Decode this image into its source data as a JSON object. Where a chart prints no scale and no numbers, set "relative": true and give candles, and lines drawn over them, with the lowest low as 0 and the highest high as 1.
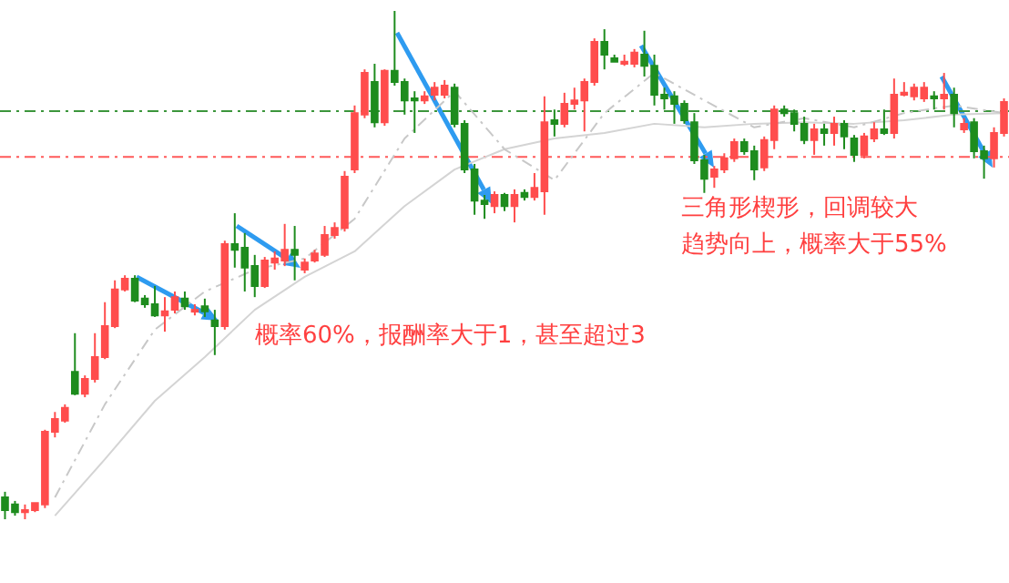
{
  "chart_data": {
    "type": "candlestick",
    "relative": true,
    "categories": [
      null,
      null,
      null,
      null,
      null,
      null,
      null,
      null,
      null,
      null,
      null,
      null,
      null,
      null,
      null,
      null,
      null,
      null,
      null,
      null,
      null,
      null,
      null,
      null,
      null,
      null,
      null,
      null,
      null,
      null,
      null,
      null,
      null,
      null,
      null,
      null,
      null,
      null,
      null,
      null,
      null,
      null,
      null,
      null,
      null,
      null,
      null,
      null,
      null,
      null,
      null,
      null,
      null,
      null,
      null,
      null,
      null,
      null,
      null,
      null,
      null,
      null,
      null,
      null,
      null,
      null,
      null,
      null,
      null,
      null,
      null,
      null,
      null,
      null,
      null,
      null,
      null,
      null,
      null,
      null,
      null,
      null,
      null,
      null,
      null,
      null,
      null,
      null,
      null,
      null,
      null,
      null,
      null,
      null,
      null,
      null,
      null,
      null,
      null,
      null,
      null
    ],
    "ohlc": [
      [
        0.043,
        0.054,
        0,
        0.018
      ],
      [
        0.029,
        0.036,
        0.007,
        0.014
      ],
      [
        0.014,
        0.029,
        0,
        0.018
      ],
      [
        0.018,
        0.032,
        0.014,
        0.032
      ],
      [
        0.029,
        0.176,
        0.022,
        0.172
      ],
      [
        0.172,
        0.211,
        0.161,
        0.197
      ],
      [
        0.194,
        0.226,
        0.19,
        0.219
      ],
      [
        0.29,
        0.366,
        0.244,
        0.247
      ],
      [
        0.247,
        0.283,
        0.24,
        0.276
      ],
      [
        0.276,
        0.366,
        0.269,
        0.319
      ],
      [
        0.319,
        0.427,
        0.315,
        0.38
      ],
      [
        0.38,
        0.47,
        0.376,
        0.452
      ],
      [
        0.452,
        0.48,
        0.448,
        0.473
      ],
      [
        0.473,
        0.48,
        0.427,
        0.43
      ],
      [
        0.434,
        0.441,
        0.416,
        0.423
      ],
      [
        0.423,
        0.459,
        0.398,
        0.401
      ],
      [
        0.401,
        0.437,
        0.369,
        0.409
      ],
      [
        0.412,
        0.448,
        0.405,
        0.437
      ],
      [
        0.434,
        0.448,
        0.412,
        0.419
      ],
      [
        0.409,
        0.423,
        0.401,
        0.412
      ],
      [
        0.419,
        0.434,
        0.398,
        0.409
      ],
      [
        0.391,
        0.412,
        0.323,
        0.38
      ],
      [
        0.38,
        0.548,
        0.373,
        0.541
      ],
      [
        0.541,
        0.602,
        0.495,
        0.53
      ],
      [
        0.534,
        0.563,
        0.448,
        0.495
      ],
      [
        0.498,
        0.52,
        0.437,
        0.459
      ],
      [
        0.459,
        0.516,
        0.455,
        0.509
      ],
      [
        0.505,
        0.527,
        0.491,
        0.513
      ],
      [
        0.509,
        0.581,
        0.498,
        0.53
      ],
      [
        0.53,
        0.577,
        0.47,
        0.52
      ],
      [
        0.491,
        0.513,
        0.484,
        0.505
      ],
      [
        0.509,
        0.53,
        0.505,
        0.523
      ],
      [
        0.52,
        0.577,
        0.516,
        0.559
      ],
      [
        0.559,
        0.584,
        0.552,
        0.573
      ],
      [
        0.573,
        0.685,
        0.566,
        0.674
      ],
      [
        0.688,
        0.814,
        0.681,
        0.799
      ],
      [
        0.796,
        0.885,
        0.789,
        0.878
      ],
      [
        0.86,
        0.896,
        0.771,
        0.781
      ],
      [
        0.781,
        0.885,
        0.774,
        0.882
      ],
      [
        0.882,
        1,
        0.853,
        0.86
      ],
      [
        0.86,
        0.867,
        0.796,
        0.824
      ],
      [
        0.828,
        0.842,
        0.76,
        0.824
      ],
      [
        0.824,
        0.842,
        0.817,
        0.832
      ],
      [
        0.835,
        0.86,
        0.824,
        0.849
      ],
      [
        0.835,
        0.864,
        0.828,
        0.853
      ],
      [
        0.849,
        0.857,
        0.771,
        0.778
      ],
      [
        0.778,
        0.785,
        0.681,
        0.688
      ],
      [
        0.688,
        0.699,
        0.599,
        0.627
      ],
      [
        0.627,
        0.638,
        0.591,
        0.62
      ],
      [
        0.616,
        0.645,
        0.602,
        0.638
      ],
      [
        0.638,
        0.642,
        0.606,
        0.616
      ],
      [
        0.616,
        0.649,
        0.584,
        0.638
      ],
      [
        0.642,
        0.649,
        0.627,
        0.634
      ],
      [
        0.634,
        0.681,
        0.627,
        0.652
      ],
      [
        0.645,
        0.832,
        0.599,
        0.781
      ],
      [
        0.785,
        0.806,
        0.753,
        0.778
      ],
      [
        0.778,
        0.839,
        0.771,
        0.817
      ],
      [
        0.817,
        0.849,
        0.806,
        0.824
      ],
      [
        0.824,
        0.867,
        0.763,
        0.86
      ],
      [
        0.86,
        0.946,
        0.853,
        0.939
      ],
      [
        0.939,
        0.964,
        0.885,
        0.914
      ],
      [
        0.907,
        0.914,
        0.9,
        0.9
      ],
      [
        0.896,
        0.914,
        0.892,
        0.9
      ],
      [
        0.896,
        0.925,
        0.889,
        0.918
      ],
      [
        0.914,
        0.961,
        0.871,
        0.892
      ],
      [
        0.892,
        0.914,
        0.814,
        0.835
      ],
      [
        0.835,
        0.849,
        0.806,
        0.828
      ],
      [
        0.832,
        0.842,
        0.778,
        0.817
      ],
      [
        0.817,
        0.824,
        0.778,
        0.785
      ],
      [
        0.781,
        0.799,
        0.699,
        0.706
      ],
      [
        0.706,
        0.717,
        0.642,
        0.67
      ],
      [
        0.674,
        0.695,
        0.652,
        0.688
      ],
      [
        0.688,
        0.72,
        0.681,
        0.71
      ],
      [
        0.71,
        0.749,
        0.703,
        0.742
      ],
      [
        0.742,
        0.749,
        0.717,
        0.724
      ],
      [
        0.724,
        0.735,
        0.667,
        0.688
      ],
      [
        0.692,
        0.753,
        0.685,
        0.746
      ],
      [
        0.746,
        0.814,
        0.728,
        0.806
      ],
      [
        0.806,
        0.814,
        0.792,
        0.799
      ],
      [
        0.799,
        0.806,
        0.763,
        0.778
      ],
      [
        0.778,
        0.792,
        0.738,
        0.746
      ],
      [
        0.746,
        0.778,
        0.717,
        0.767
      ],
      [
        0.767,
        0.778,
        0.735,
        0.76
      ],
      [
        0.76,
        0.792,
        0.735,
        0.778
      ],
      [
        0.778,
        0.785,
        0.728,
        0.753
      ],
      [
        0.749,
        0.756,
        0.703,
        0.717
      ],
      [
        0.717,
        0.76,
        0.71,
        0.753
      ],
      [
        0.749,
        0.781,
        0.742,
        0.767
      ],
      [
        0.767,
        0.806,
        0.756,
        0.76
      ],
      [
        0.76,
        0.867,
        0.749,
        0.835
      ],
      [
        0.835,
        0.86,
        0.832,
        0.839
      ],
      [
        0.832,
        0.857,
        0.824,
        0.849
      ],
      [
        0.828,
        0.86,
        0.821,
        0.849
      ],
      [
        0.832,
        0.842,
        0.806,
        0.828
      ],
      [
        0.828,
        0.878,
        0.806,
        0.835
      ],
      [
        0.835,
        0.849,
        0.771,
        0.799
      ],
      [
        0.767,
        0.789,
        0.76,
        0.778
      ],
      [
        0.781,
        0.789,
        0.71,
        0.724
      ],
      [
        0.724,
        0.735,
        0.67,
        0.71
      ],
      [
        0.71,
        0.771,
        0.692,
        0.76
      ],
      [
        0.76,
        0.828,
        0.753,
        0.821
      ]
    ],
    "colors": [
      "#1e8c1e",
      "#1e8c1e",
      "#ff4d4d",
      "#ff4d4d",
      "#ff4d4d",
      "#ff4d4d",
      "#ff4d4d",
      "#1e8c1e",
      "#ff4d4d",
      "#ff4d4d",
      "#ff4d4d",
      "#ff4d4d",
      "#ff4d4d",
      "#1e8c1e",
      "#1e8c1e",
      "#1e8c1e",
      "#ff4d4d",
      "#ff4d4d",
      "#1e8c1e",
      "#ff4d4d",
      "#1e8c1e",
      "#1e8c1e",
      "#ff4d4d",
      "#1e8c1e",
      "#1e8c1e",
      "#1e8c1e",
      "#ff4d4d",
      "#ff4d4d",
      "#ff4d4d",
      "#1e8c1e",
      "#ff4d4d",
      "#ff4d4d",
      "#ff4d4d",
      "#ff4d4d",
      "#ff4d4d",
      "#ff4d4d",
      "#ff4d4d",
      "#1e8c1e",
      "#ff4d4d",
      "#1e8c1e",
      "#1e8c1e",
      "#1e8c1e",
      "#ff4d4d",
      "#ff4d4d",
      "#ff4d4d",
      "#1e8c1e",
      "#1e8c1e",
      "#1e8c1e",
      "#1e8c1e",
      "#ff4d4d",
      "#1e8c1e",
      "#ff4d4d",
      "#1e8c1e",
      "#ff4d4d",
      "#ff4d4d",
      "#1e8c1e",
      "#ff4d4d",
      "#ff4d4d",
      "#ff4d4d",
      "#ff4d4d",
      "#1e8c1e",
      "#1e8c1e",
      "#ff4d4d",
      "#ff4d4d",
      "#1e8c1e",
      "#1e8c1e",
      "#1e8c1e",
      "#1e8c1e",
      "#1e8c1e",
      "#1e8c1e",
      "#1e8c1e",
      "#ff4d4d",
      "#ff4d4d",
      "#ff4d4d",
      "#1e8c1e",
      "#1e8c1e",
      "#ff4d4d",
      "#ff4d4d",
      "#1e8c1e",
      "#1e8c1e",
      "#1e8c1e",
      "#ff4d4d",
      "#1e8c1e",
      "#ff4d4d",
      "#1e8c1e",
      "#1e8c1e",
      "#ff4d4d",
      "#ff4d4d",
      "#1e8c1e",
      "#ff4d4d",
      "#ff4d4d",
      "#ff4d4d",
      "#ff4d4d",
      "#1e8c1e",
      "#ff4d4d",
      "#1e8c1e",
      "#ff4d4d",
      "#1e8c1e",
      "#1e8c1e",
      "#ff4d4d",
      "#ff4d4d"
    ],
    "series": [
      {
        "type": "line",
        "color": "#c8c8c8",
        "line_style": "dashed",
        "values": [
          null,
          null,
          null,
          null,
          null,
          0.043,
          null,
          null,
          null,
          null,
          0.226,
          null,
          null,
          null,
          null,
          0.373,
          null,
          null,
          null,
          null,
          0.448,
          null,
          null,
          null,
          null,
          0.491,
          null,
          null,
          null,
          null,
          0.513,
          null,
          null,
          null,
          null,
          0.591,
          null,
          null,
          null,
          null,
          0.749,
          null,
          null,
          null,
          null,
          0.842,
          null,
          null,
          null,
          null,
          0.728,
          null,
          null,
          null,
          null,
          0.667,
          null,
          null,
          null,
          null,
          0.799,
          null,
          null,
          null,
          null,
          0.878,
          null,
          null,
          null,
          null,
          0.824,
          null,
          null,
          null,
          null,
          0.771,
          null,
          null,
          null,
          null,
          0.789,
          null,
          null,
          null,
          null,
          0.771,
          null,
          null,
          null,
          null,
          0.799,
          null,
          null,
          null,
          null,
          0.814,
          null,
          null,
          null,
          null,
          0.799
        ]
      },
      {
        "type": "line",
        "color": "#d4d4d4",
        "line_style": "solid",
        "values": [
          null,
          null,
          null,
          null,
          null,
          0.007,
          null,
          null,
          null,
          null,
          0.118,
          null,
          null,
          null,
          null,
          0.233,
          null,
          null,
          null,
          null,
          0.319,
          null,
          null,
          null,
          null,
          0.412,
          null,
          null,
          null,
          null,
          0.477,
          null,
          null,
          null,
          null,
          0.527,
          null,
          null,
          null,
          null,
          0.616,
          null,
          null,
          null,
          null,
          0.688,
          null,
          null,
          null,
          null,
          0.728,
          null,
          null,
          null,
          null,
          0.749,
          null,
          null,
          null,
          null,
          0.76,
          null,
          null,
          null,
          null,
          0.778,
          null,
          null,
          null,
          null,
          0.771,
          null,
          null,
          null,
          null,
          0.778,
          null,
          null,
          null,
          null,
          0.781,
          null,
          null,
          null,
          null,
          0.778,
          null,
          null,
          null,
          null,
          0.785,
          null,
          null,
          null,
          null,
          0.796,
          null,
          null,
          null,
          null,
          0.799
        ]
      }
    ],
    "ref_lines": [
      {
        "axis": "y",
        "value": 0.803,
        "color": "#3c963c",
        "line_style": "dashed"
      },
      {
        "axis": "y",
        "value": 0.713,
        "color": "#ff5a5a",
        "line_style": "dashed"
      }
    ],
    "annotations": [
      "概率60%，报酬率大于1，甚至超过3",
      "三角形楔形，回调较大",
      "趋势向上，概率大于55%"
    ]
  }
}
